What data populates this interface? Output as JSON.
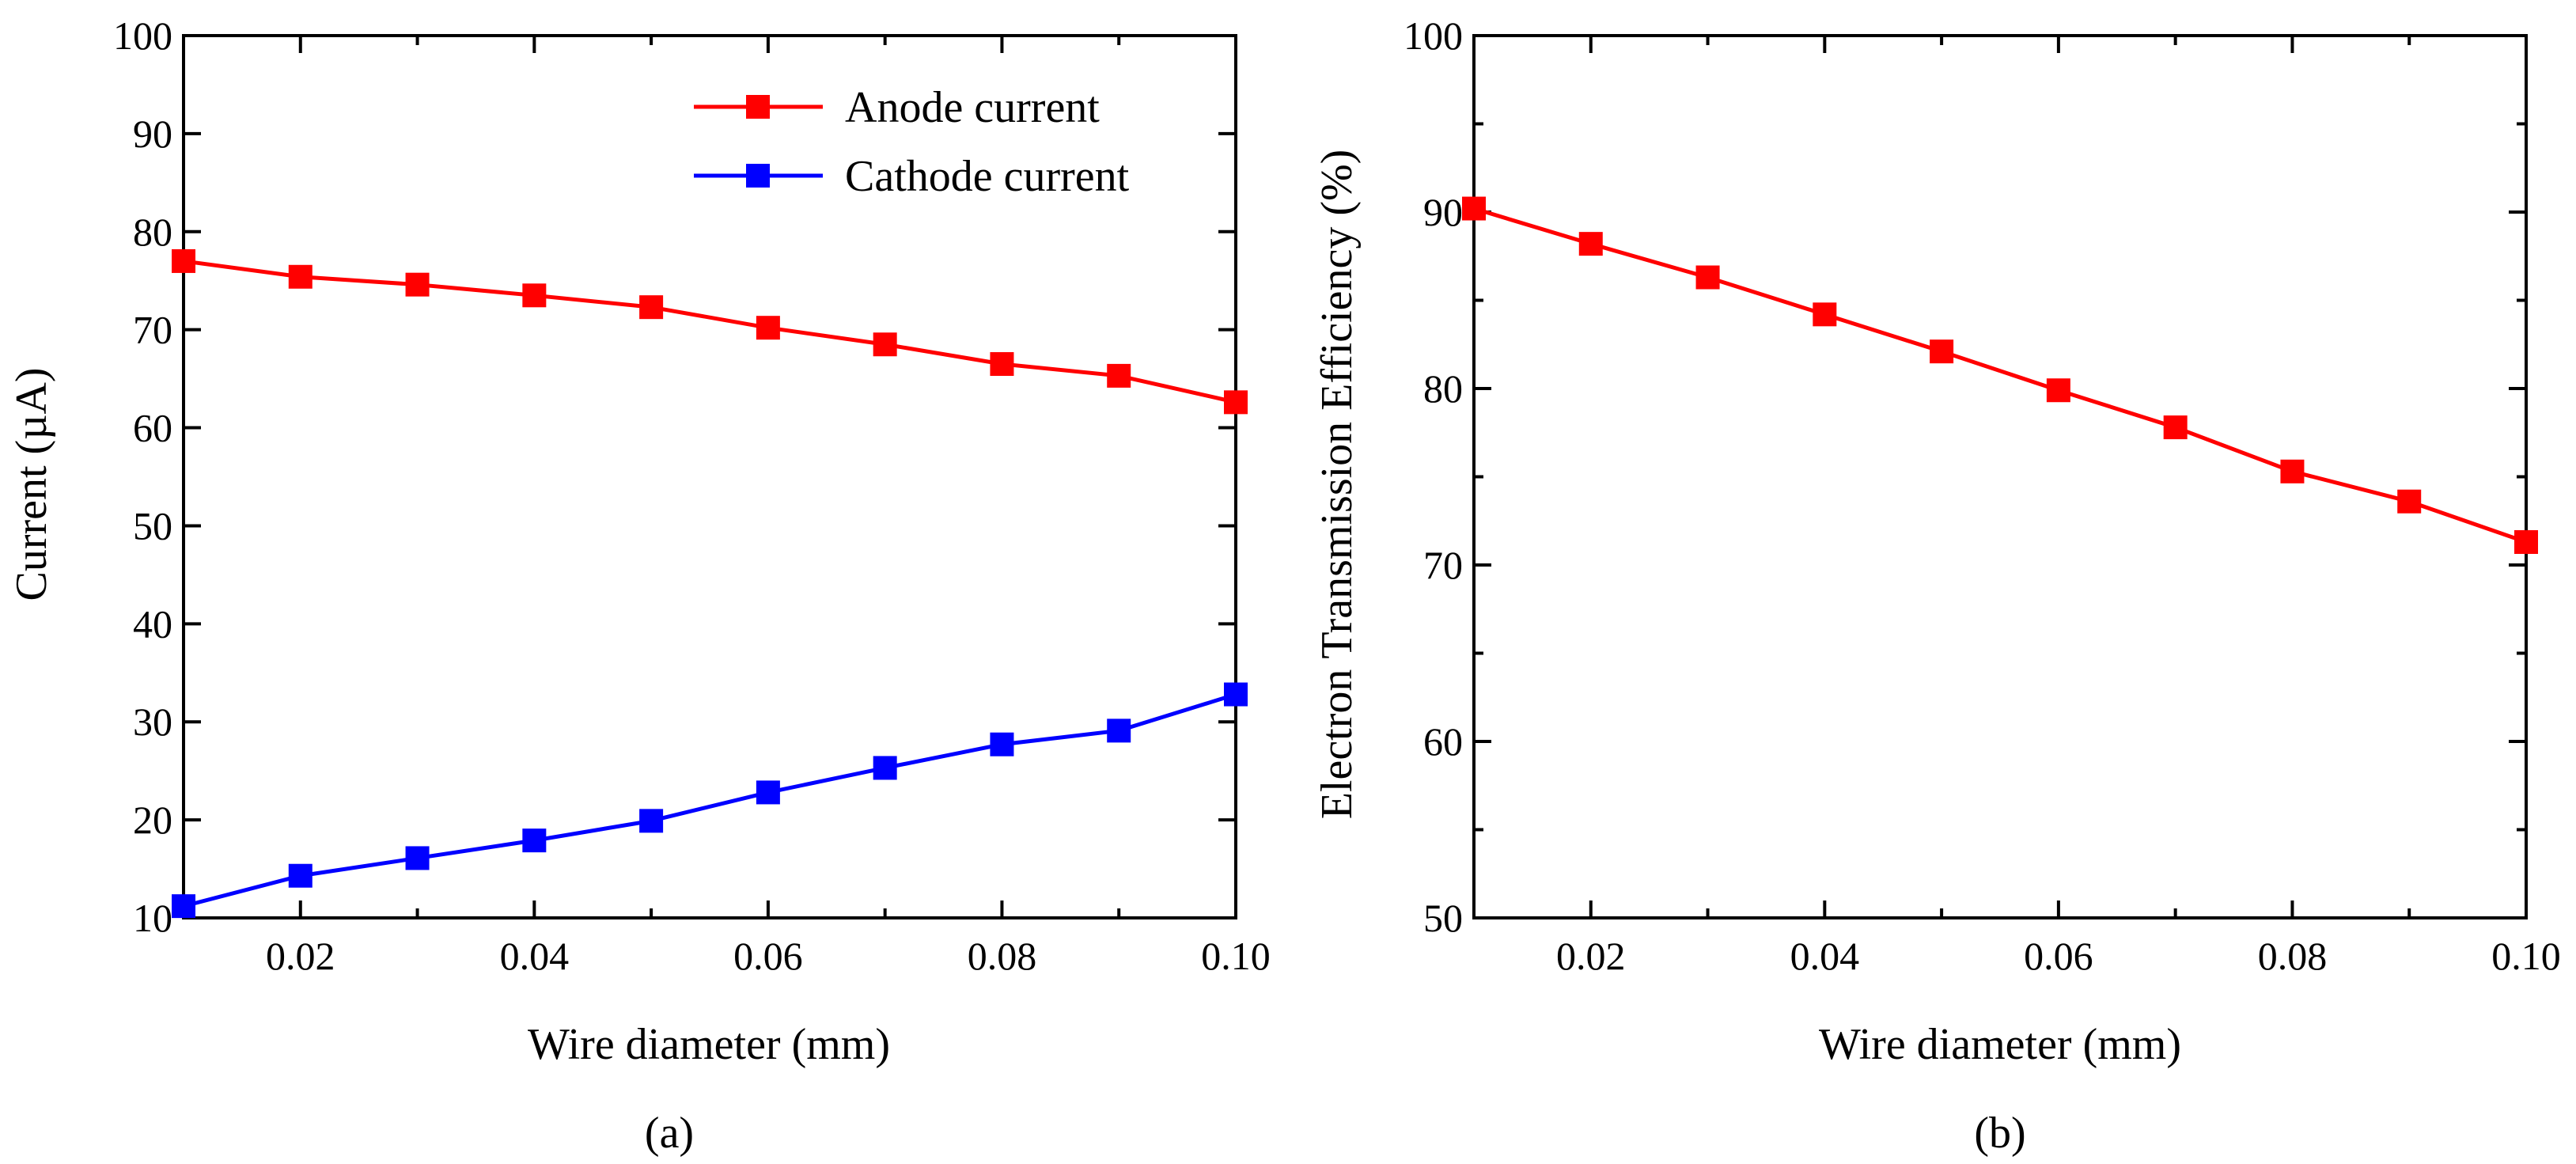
{
  "chart_data": [
    {
      "id": "a",
      "type": "line",
      "caption": "(a)",
      "xlabel": "Wire diameter (mm)",
      "ylabel": "Current (µA)",
      "xlim": [
        0.01,
        0.1
      ],
      "ylim": [
        10,
        100
      ],
      "xticks": [
        "0.02",
        "0.04",
        "0.06",
        "0.08",
        "0.10"
      ],
      "yticks": [
        "10",
        "20",
        "30",
        "40",
        "50",
        "60",
        "70",
        "80",
        "90",
        "100"
      ],
      "legend_position": "top-right",
      "x": [
        0.01,
        0.02,
        0.03,
        0.04,
        0.05,
        0.06,
        0.07,
        0.08,
        0.09,
        0.1
      ],
      "series": [
        {
          "name": "Anode current",
          "color": "#ff0000",
          "values": [
            77.0,
            75.4,
            74.6,
            73.5,
            72.3,
            70.2,
            68.5,
            66.5,
            65.3,
            62.6
          ]
        },
        {
          "name": "Cathode current",
          "color": "#0000ff",
          "values": [
            11.2,
            14.3,
            16.1,
            17.9,
            19.9,
            22.8,
            25.3,
            27.7,
            29.1,
            32.8
          ]
        }
      ]
    },
    {
      "id": "b",
      "type": "line",
      "caption": "(b)",
      "xlabel": "Wire diameter (mm)",
      "ylabel": "Electron Transmission Efficiency (%)",
      "xlim": [
        0.01,
        0.1
      ],
      "ylim": [
        50,
        100
      ],
      "xticks": [
        "0.02",
        "0.04",
        "0.06",
        "0.08",
        "0.10"
      ],
      "yticks": [
        "50",
        "60",
        "70",
        "80",
        "90",
        "100"
      ],
      "x": [
        0.01,
        0.02,
        0.03,
        0.04,
        0.05,
        0.06,
        0.07,
        0.08,
        0.09,
        0.1
      ],
      "series": [
        {
          "name": "Electron Transmission Efficiency",
          "color": "#ff0000",
          "values": [
            90.2,
            88.2,
            86.3,
            84.2,
            82.1,
            79.9,
            77.8,
            75.3,
            73.6,
            71.3
          ]
        }
      ]
    }
  ]
}
